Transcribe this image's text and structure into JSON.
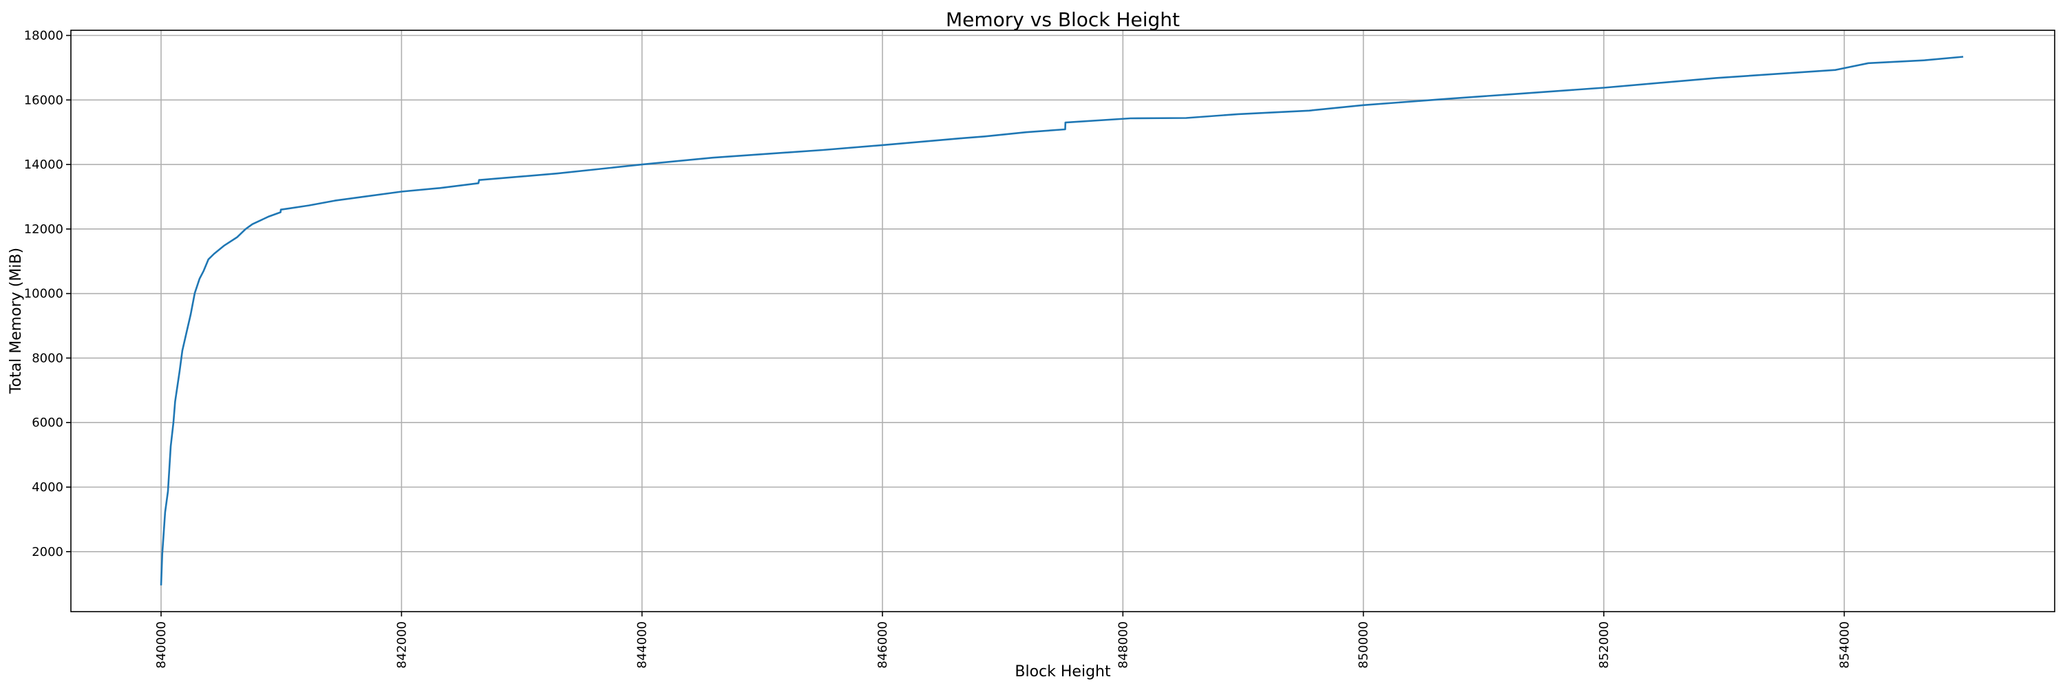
{
  "chart_data": {
    "type": "line",
    "title": "Memory vs Block Height",
    "xlabel": "Block Height",
    "ylabel": "Total Memory (MiB)",
    "xlim": [
      839250,
      855750
    ],
    "ylim": [
      140,
      18160
    ],
    "grid": true,
    "xticks": [
      840000,
      842000,
      844000,
      846000,
      848000,
      850000,
      852000,
      854000
    ],
    "xtick_labels": [
      "840000",
      "842000",
      "844000",
      "846000",
      "848000",
      "850000",
      "852000",
      "854000"
    ],
    "yticks": [
      2000,
      4000,
      6000,
      8000,
      10000,
      12000,
      14000,
      16000,
      18000
    ],
    "ytick_labels": [
      "2000",
      "4000",
      "6000",
      "8000",
      "10000",
      "12000",
      "14000",
      "16000",
      "18000"
    ],
    "series": [
      {
        "color": "#1f77b4",
        "points": [
          [
            840000,
            955
          ],
          [
            840010,
            1920
          ],
          [
            840034,
            3225
          ],
          [
            840057,
            3870
          ],
          [
            840080,
            5260
          ],
          [
            840103,
            6010
          ],
          [
            840117,
            6650
          ],
          [
            840154,
            7590
          ],
          [
            840177,
            8230
          ],
          [
            840211,
            8790
          ],
          [
            840246,
            9350
          ],
          [
            840280,
            10010
          ],
          [
            840320,
            10460
          ],
          [
            840354,
            10700
          ],
          [
            840394,
            11060
          ],
          [
            840440,
            11230
          ],
          [
            840526,
            11490
          ],
          [
            840634,
            11750
          ],
          [
            840703,
            12000
          ],
          [
            840760,
            12150
          ],
          [
            840897,
            12390
          ],
          [
            840994,
            12520
          ],
          [
            840996,
            12600
          ],
          [
            841051,
            12630
          ],
          [
            841229,
            12730
          ],
          [
            841446,
            12880
          ],
          [
            841663,
            12990
          ],
          [
            842000,
            13160
          ],
          [
            842320,
            13270
          ],
          [
            842640,
            13420
          ],
          [
            842645,
            13520
          ],
          [
            842653,
            13520
          ],
          [
            843292,
            13720
          ],
          [
            844000,
            14000
          ],
          [
            844588,
            14210
          ],
          [
            845506,
            14450
          ],
          [
            846000,
            14600
          ],
          [
            846650,
            14810
          ],
          [
            846851,
            14870
          ],
          [
            847194,
            15000
          ],
          [
            847520,
            15090
          ],
          [
            847522,
            15300
          ],
          [
            848063,
            15430
          ],
          [
            848526,
            15440
          ],
          [
            848960,
            15560
          ],
          [
            849549,
            15670
          ],
          [
            850000,
            15840
          ],
          [
            850754,
            16050
          ],
          [
            851251,
            16180
          ],
          [
            852000,
            16380
          ],
          [
            852931,
            16680
          ],
          [
            853926,
            16930
          ],
          [
            854200,
            17140
          ],
          [
            854669,
            17230
          ],
          [
            854989,
            17340
          ]
        ]
      }
    ]
  }
}
